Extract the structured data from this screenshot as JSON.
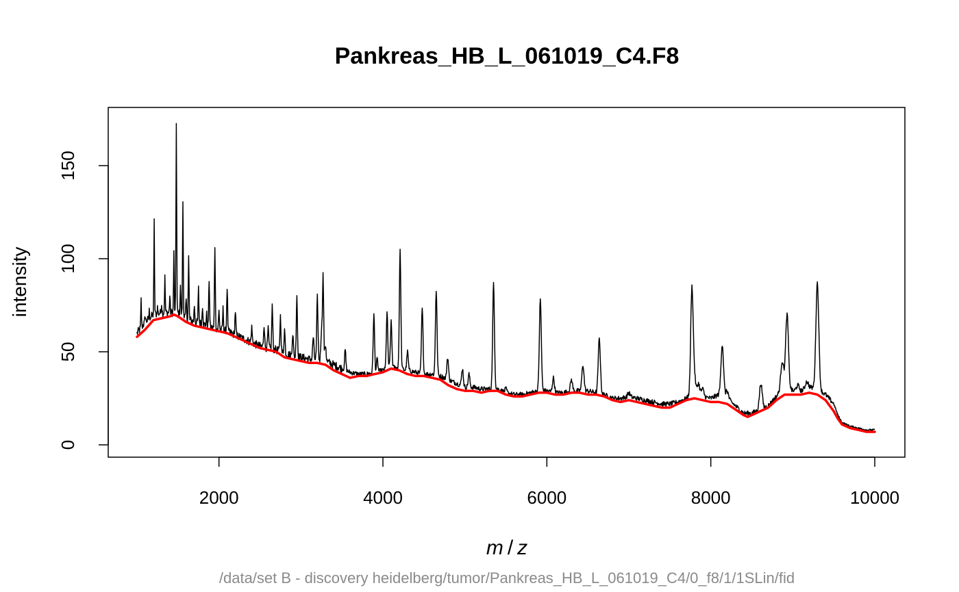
{
  "chart_data": {
    "type": "line",
    "title": "Pankreas_HB_L_061019_C4.F8",
    "xlabel": "m/z",
    "xlabel_parts": {
      "m": "m",
      "slash": "/",
      "z": "z"
    },
    "ylabel": "intensity",
    "subtitle": "/data/set B - discovery heidelberg/tumor/Pankreas_HB_L_061019_C4/0_f8/1/1SLin/fid",
    "xlim": [
      1000,
      10000
    ],
    "ylim": [
      0,
      175
    ],
    "x_ticks": [
      2000,
      4000,
      6000,
      8000,
      10000
    ],
    "y_ticks": [
      0,
      50,
      100,
      150
    ],
    "series": [
      {
        "color": "#000000",
        "baseline": [
          [
            1000,
            60
          ],
          [
            1100,
            66
          ],
          [
            1200,
            70
          ],
          [
            1300,
            71
          ],
          [
            1400,
            71
          ],
          [
            1500,
            71
          ],
          [
            1600,
            68
          ],
          [
            1700,
            66
          ],
          [
            1800,
            65
          ],
          [
            1900,
            63
          ],
          [
            2000,
            62
          ],
          [
            2100,
            61
          ],
          [
            2200,
            59
          ],
          [
            2300,
            57
          ],
          [
            2400,
            55
          ],
          [
            2500,
            53
          ],
          [
            2600,
            52
          ],
          [
            2700,
            51
          ],
          [
            2800,
            49
          ],
          [
            2900,
            48
          ],
          [
            3000,
            47
          ],
          [
            3100,
            46
          ],
          [
            3200,
            46
          ],
          [
            3300,
            45
          ],
          [
            3400,
            43
          ],
          [
            3500,
            41
          ],
          [
            3600,
            39
          ],
          [
            3700,
            38
          ],
          [
            3800,
            38
          ],
          [
            3900,
            39
          ],
          [
            4000,
            40
          ],
          [
            4100,
            42
          ],
          [
            4200,
            41
          ],
          [
            4300,
            40
          ],
          [
            4400,
            39
          ],
          [
            4500,
            38
          ],
          [
            4600,
            38
          ],
          [
            4700,
            37
          ],
          [
            4800,
            35
          ],
          [
            4900,
            33
          ],
          [
            5000,
            31
          ],
          [
            5100,
            31
          ],
          [
            5200,
            30
          ],
          [
            5300,
            30
          ],
          [
            5400,
            30
          ],
          [
            5500,
            28
          ],
          [
            5600,
            27
          ],
          [
            5700,
            27
          ],
          [
            5800,
            28
          ],
          [
            5900,
            29
          ],
          [
            6000,
            29
          ],
          [
            6100,
            28
          ],
          [
            6200,
            28
          ],
          [
            6300,
            29
          ],
          [
            6400,
            29
          ],
          [
            6500,
            29
          ],
          [
            6600,
            28
          ],
          [
            6700,
            27
          ],
          [
            6800,
            25
          ],
          [
            6900,
            25
          ],
          [
            7000,
            26
          ],
          [
            7100,
            25
          ],
          [
            7200,
            24
          ],
          [
            7300,
            23
          ],
          [
            7400,
            22
          ],
          [
            7500,
            22
          ],
          [
            7600,
            23
          ],
          [
            7700,
            25
          ],
          [
            7800,
            28
          ],
          [
            7900,
            26
          ],
          [
            8000,
            25
          ],
          [
            8100,
            27
          ],
          [
            8200,
            25
          ],
          [
            8300,
            21
          ],
          [
            8400,
            17
          ],
          [
            8500,
            17
          ],
          [
            8600,
            19
          ],
          [
            8700,
            21
          ],
          [
            8800,
            26
          ],
          [
            8900,
            32
          ],
          [
            9000,
            29
          ],
          [
            9100,
            29
          ],
          [
            9200,
            31
          ],
          [
            9300,
            30
          ],
          [
            9400,
            27
          ],
          [
            9500,
            22
          ],
          [
            9550,
            16
          ],
          [
            9600,
            12
          ],
          [
            9700,
            10
          ],
          [
            9800,
            9
          ],
          [
            9900,
            8
          ],
          [
            10000,
            8
          ]
        ],
        "peaks": [
          [
            1050,
            78
          ],
          [
            1100,
            70
          ],
          [
            1150,
            72
          ],
          [
            1210,
            120
          ],
          [
            1250,
            74
          ],
          [
            1300,
            76
          ],
          [
            1340,
            90
          ],
          [
            1400,
            80
          ],
          [
            1450,
            103
          ],
          [
            1480,
            174
          ],
          [
            1530,
            86
          ],
          [
            1560,
            131
          ],
          [
            1600,
            78
          ],
          [
            1630,
            101
          ],
          [
            1700,
            75
          ],
          [
            1750,
            84
          ],
          [
            1800,
            75
          ],
          [
            1850,
            70
          ],
          [
            1880,
            89
          ],
          [
            1950,
            107
          ],
          [
            2000,
            72
          ],
          [
            2050,
            73
          ],
          [
            2100,
            85
          ],
          [
            2200,
            72
          ],
          [
            2400,
            63
          ],
          [
            2550,
            65
          ],
          [
            2600,
            62
          ],
          [
            2650,
            75
          ],
          [
            2750,
            69
          ],
          [
            2800,
            62
          ],
          [
            2900,
            60
          ],
          [
            2950,
            81
          ],
          [
            3150,
            58
          ],
          [
            3200,
            79
          ],
          [
            3250,
            62
          ],
          [
            3270,
            91
          ],
          [
            3300,
            54
          ],
          [
            3540,
            51
          ],
          [
            3890,
            70
          ],
          [
            3930,
            46
          ],
          [
            4050,
            71
          ],
          [
            4100,
            66
          ],
          [
            4210,
            104
          ],
          [
            4300,
            50
          ],
          [
            4480,
            73
          ],
          [
            4650,
            83
          ],
          [
            4790,
            47
          ],
          [
            4970,
            41
          ],
          [
            5050,
            38
          ],
          [
            5350,
            87
          ],
          [
            5500,
            30
          ],
          [
            5920,
            78
          ],
          [
            6080,
            36
          ],
          [
            6300,
            35
          ],
          [
            6440,
            43
          ],
          [
            6640,
            57
          ],
          [
            7000,
            28
          ],
          [
            7770,
            84
          ],
          [
            7800,
            36
          ],
          [
            7850,
            33
          ],
          [
            7900,
            30
          ],
          [
            8140,
            54
          ],
          [
            8200,
            29
          ],
          [
            8610,
            33
          ],
          [
            8870,
            45
          ],
          [
            8930,
            70
          ],
          [
            9060,
            32
          ],
          [
            9170,
            34
          ],
          [
            9300,
            87
          ],
          [
            9420,
            26
          ]
        ]
      },
      {
        "color": "#ff0000",
        "points": [
          [
            1000,
            58
          ],
          [
            1100,
            62
          ],
          [
            1200,
            67
          ],
          [
            1300,
            68
          ],
          [
            1400,
            69
          ],
          [
            1450,
            70
          ],
          [
            1500,
            69
          ],
          [
            1600,
            66
          ],
          [
            1700,
            64
          ],
          [
            1800,
            63
          ],
          [
            1900,
            62
          ],
          [
            2000,
            61
          ],
          [
            2100,
            60
          ],
          [
            2200,
            58
          ],
          [
            2300,
            56
          ],
          [
            2400,
            54
          ],
          [
            2500,
            52
          ],
          [
            2600,
            51
          ],
          [
            2700,
            50
          ],
          [
            2800,
            47
          ],
          [
            2900,
            46
          ],
          [
            3000,
            45
          ],
          [
            3100,
            44
          ],
          [
            3200,
            44
          ],
          [
            3300,
            43
          ],
          [
            3400,
            40
          ],
          [
            3500,
            38
          ],
          [
            3600,
            36
          ],
          [
            3700,
            37
          ],
          [
            3800,
            37
          ],
          [
            3900,
            38
          ],
          [
            4000,
            39
          ],
          [
            4100,
            41
          ],
          [
            4200,
            40
          ],
          [
            4300,
            38
          ],
          [
            4400,
            37
          ],
          [
            4500,
            37
          ],
          [
            4600,
            36
          ],
          [
            4700,
            35
          ],
          [
            4800,
            32
          ],
          [
            4900,
            30
          ],
          [
            5000,
            29
          ],
          [
            5100,
            29
          ],
          [
            5200,
            28
          ],
          [
            5300,
            29
          ],
          [
            5400,
            29
          ],
          [
            5500,
            27
          ],
          [
            5600,
            26
          ],
          [
            5700,
            26
          ],
          [
            5800,
            27
          ],
          [
            5900,
            28
          ],
          [
            6000,
            28
          ],
          [
            6100,
            27
          ],
          [
            6200,
            27
          ],
          [
            6300,
            28
          ],
          [
            6400,
            28
          ],
          [
            6500,
            27
          ],
          [
            6600,
            27
          ],
          [
            6700,
            26
          ],
          [
            6800,
            24
          ],
          [
            6900,
            23
          ],
          [
            7000,
            24
          ],
          [
            7100,
            23
          ],
          [
            7200,
            22
          ],
          [
            7300,
            21
          ],
          [
            7400,
            20
          ],
          [
            7500,
            20
          ],
          [
            7600,
            22
          ],
          [
            7700,
            24
          ],
          [
            7800,
            25
          ],
          [
            7900,
            24
          ],
          [
            8000,
            23
          ],
          [
            8100,
            23
          ],
          [
            8200,
            22
          ],
          [
            8300,
            19
          ],
          [
            8400,
            16
          ],
          [
            8450,
            15
          ],
          [
            8500,
            16
          ],
          [
            8600,
            18
          ],
          [
            8700,
            20
          ],
          [
            8800,
            24
          ],
          [
            8900,
            27
          ],
          [
            9000,
            27
          ],
          [
            9100,
            27
          ],
          [
            9200,
            28
          ],
          [
            9300,
            27
          ],
          [
            9400,
            24
          ],
          [
            9500,
            18
          ],
          [
            9550,
            14
          ],
          [
            9600,
            11
          ],
          [
            9700,
            9
          ],
          [
            9800,
            8
          ],
          [
            9900,
            7
          ],
          [
            10000,
            7
          ]
        ]
      }
    ]
  }
}
